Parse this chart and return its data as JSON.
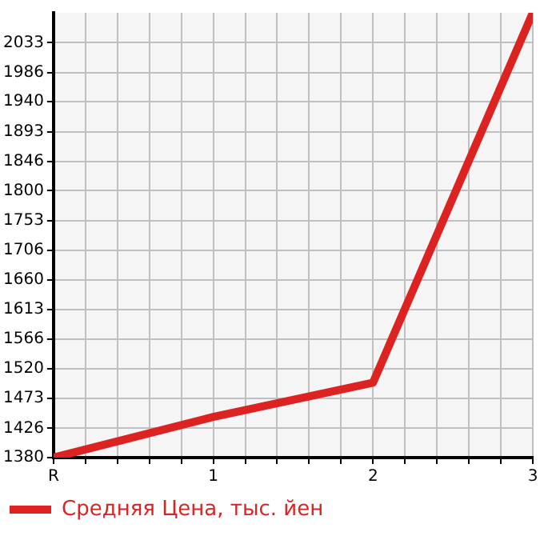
{
  "chart_data": {
    "type": "line",
    "x": [
      0,
      1,
      2,
      3
    ],
    "xlim": [
      0,
      3
    ],
    "xticks": [
      {
        "value": 0,
        "label": "R"
      },
      {
        "value": 0.2,
        "label": null
      },
      {
        "value": 0.4,
        "label": null
      },
      {
        "value": 0.6,
        "label": null
      },
      {
        "value": 0.8,
        "label": null
      },
      1,
      {
        "value": 1.2,
        "label": null
      },
      {
        "value": 1.4,
        "label": null
      },
      {
        "value": 1.6,
        "label": null
      },
      {
        "value": 1.8,
        "label": null
      },
      2,
      {
        "value": 2.2,
        "label": null
      },
      {
        "value": 2.4,
        "label": null
      },
      {
        "value": 2.6,
        "label": null
      },
      {
        "value": 2.8,
        "label": null
      },
      3
    ],
    "ylim": [
      1380,
      2080
    ],
    "yticks": [
      1380,
      1426,
      1473,
      1520,
      1566,
      1613,
      1660,
      1706,
      1753,
      1800,
      1846,
      1893,
      1940,
      1986,
      2033
    ],
    "series": [
      {
        "name": "Средняя Цена, тыс. йен",
        "color": "#dd2222",
        "values": [
          1380,
          1444,
          1498,
          2080
        ]
      }
    ],
    "grid": true,
    "legend": "bottom left",
    "marker": "none",
    "line_style": "solid"
  }
}
